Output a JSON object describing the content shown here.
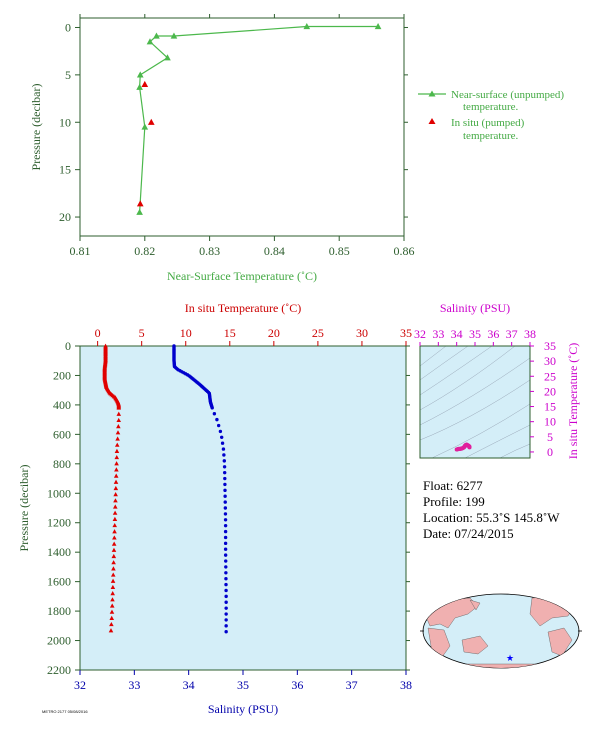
{
  "chart_data": [
    {
      "type": "scatter",
      "xlabel": "Near-Surface Temperature (˚C)",
      "ylabel": "Pressure (decibar)",
      "xlim": [
        0.81,
        0.86
      ],
      "ylim": [
        22,
        -1
      ],
      "xticks": [
        "0.81",
        "0.82",
        "0.83",
        "0.84",
        "0.85",
        "0.86"
      ],
      "yticks": [
        "0",
        "5",
        "10",
        "15",
        "20"
      ],
      "legend_placement": "right",
      "colors": {
        "near_surface": "#4cb84c",
        "in_situ": "#e00000",
        "text": "#2e5e2e",
        "label": "#44aa44"
      },
      "series": [
        {
          "name": "Near-surface (unpumped) temperature.",
          "x": [
            0.856,
            0.845,
            0.8245,
            0.8218,
            0.8208,
            0.8235,
            0.8193,
            0.8192,
            0.82,
            0.8192
          ],
          "y": [
            -0.1,
            -0.1,
            0.9,
            0.9,
            1.5,
            3.2,
            5.0,
            6.3,
            10.5,
            19.5
          ]
        },
        {
          "name": "In situ (pumped) temperature.",
          "x": [
            0.82,
            0.821,
            0.8193
          ],
          "y": [
            6.0,
            10.0,
            18.6
          ]
        }
      ]
    },
    {
      "type": "scatter",
      "title": "In situ Temperature (˚C)",
      "xlabel": "Salinity (PSU)",
      "ylabel": "Pressure (decibar)",
      "temperature_axis": {
        "label": "In situ Temperature (˚C)",
        "range": [
          -2,
          35
        ],
        "ticks": [
          "0",
          "5",
          "10",
          "15",
          "20",
          "25",
          "30",
          "35"
        ]
      },
      "salinity_axis": {
        "label": "Salinity (PSU)",
        "range": [
          32,
          38
        ],
        "ticks": [
          "32",
          "33",
          "34",
          "35",
          "36",
          "37",
          "38"
        ]
      },
      "ylim": [
        2200,
        0
      ],
      "yticks": [
        "0",
        "200",
        "400",
        "600",
        "800",
        "1000",
        "1200",
        "1400",
        "1600",
        "1800",
        "2000",
        "2200"
      ],
      "colors": {
        "background": "#d4eef8",
        "temperature": "#e00000",
        "salinity": "#0000cc",
        "temp_axis": "#cc0000",
        "sal_axis": "#0000aa"
      },
      "series": [
        {
          "name": "In situ Temperature (˚C)",
          "x": [
            0.9,
            0.9,
            0.8,
            0.8,
            0.8,
            0.9,
            1.0,
            1.4,
            2.0,
            2.3,
            2.4,
            2.4,
            2.2,
            2.1,
            2.0,
            1.9,
            1.8,
            1.7,
            1.6,
            1.5
          ],
          "y": [
            0,
            100,
            150,
            180,
            220,
            250,
            280,
            320,
            350,
            380,
            400,
            500,
            700,
            900,
            1100,
            1300,
            1500,
            1700,
            1850,
            1950
          ]
        },
        {
          "name": "Salinity (PSU)",
          "x": [
            33.73,
            33.73,
            33.74,
            33.8,
            34.0,
            34.2,
            34.38,
            34.4,
            34.45,
            34.52,
            34.6,
            34.64,
            34.66,
            34.67,
            34.68,
            34.68,
            34.69,
            34.69
          ],
          "y": [
            0,
            100,
            140,
            160,
            200,
            260,
            320,
            380,
            440,
            500,
            600,
            700,
            800,
            1000,
            1200,
            1400,
            1700,
            1950
          ]
        }
      ]
    },
    {
      "type": "scatter",
      "title": "Salinity (PSU)",
      "xlabel": "Salinity (PSU)",
      "ylabel": "In situ Temperature (˚C)",
      "xlim": [
        32,
        38
      ],
      "ylim": [
        -2,
        35
      ],
      "xticks": [
        "32",
        "33",
        "34",
        "35",
        "36",
        "37",
        "38"
      ],
      "yticks": [
        "0",
        "5",
        "10",
        "15",
        "20",
        "25",
        "30",
        "35"
      ],
      "colors": {
        "background": "#d4eef8",
        "points": "#e0209c",
        "axis": "#cc00cc",
        "contours": "#9aa8b8"
      },
      "series": [
        {
          "name": "T-S profile",
          "x": [
            34.0,
            34.1,
            34.2,
            34.3,
            34.4,
            34.45,
            34.5,
            34.55,
            34.6,
            34.65,
            34.69,
            34.7
          ],
          "y": [
            0.8,
            1.0,
            1.0,
            1.2,
            1.5,
            2.0,
            2.3,
            2.4,
            2.2,
            2.0,
            1.8,
            1.5
          ]
        }
      ]
    }
  ],
  "float_info": {
    "float": "Float:  6277",
    "profile": "Profile:  199",
    "location": "Location:  55.3˚S  145.8˚W",
    "date": "Date:  07/24/2015"
  },
  "stamp": "METRO 2177 05/08/2016"
}
